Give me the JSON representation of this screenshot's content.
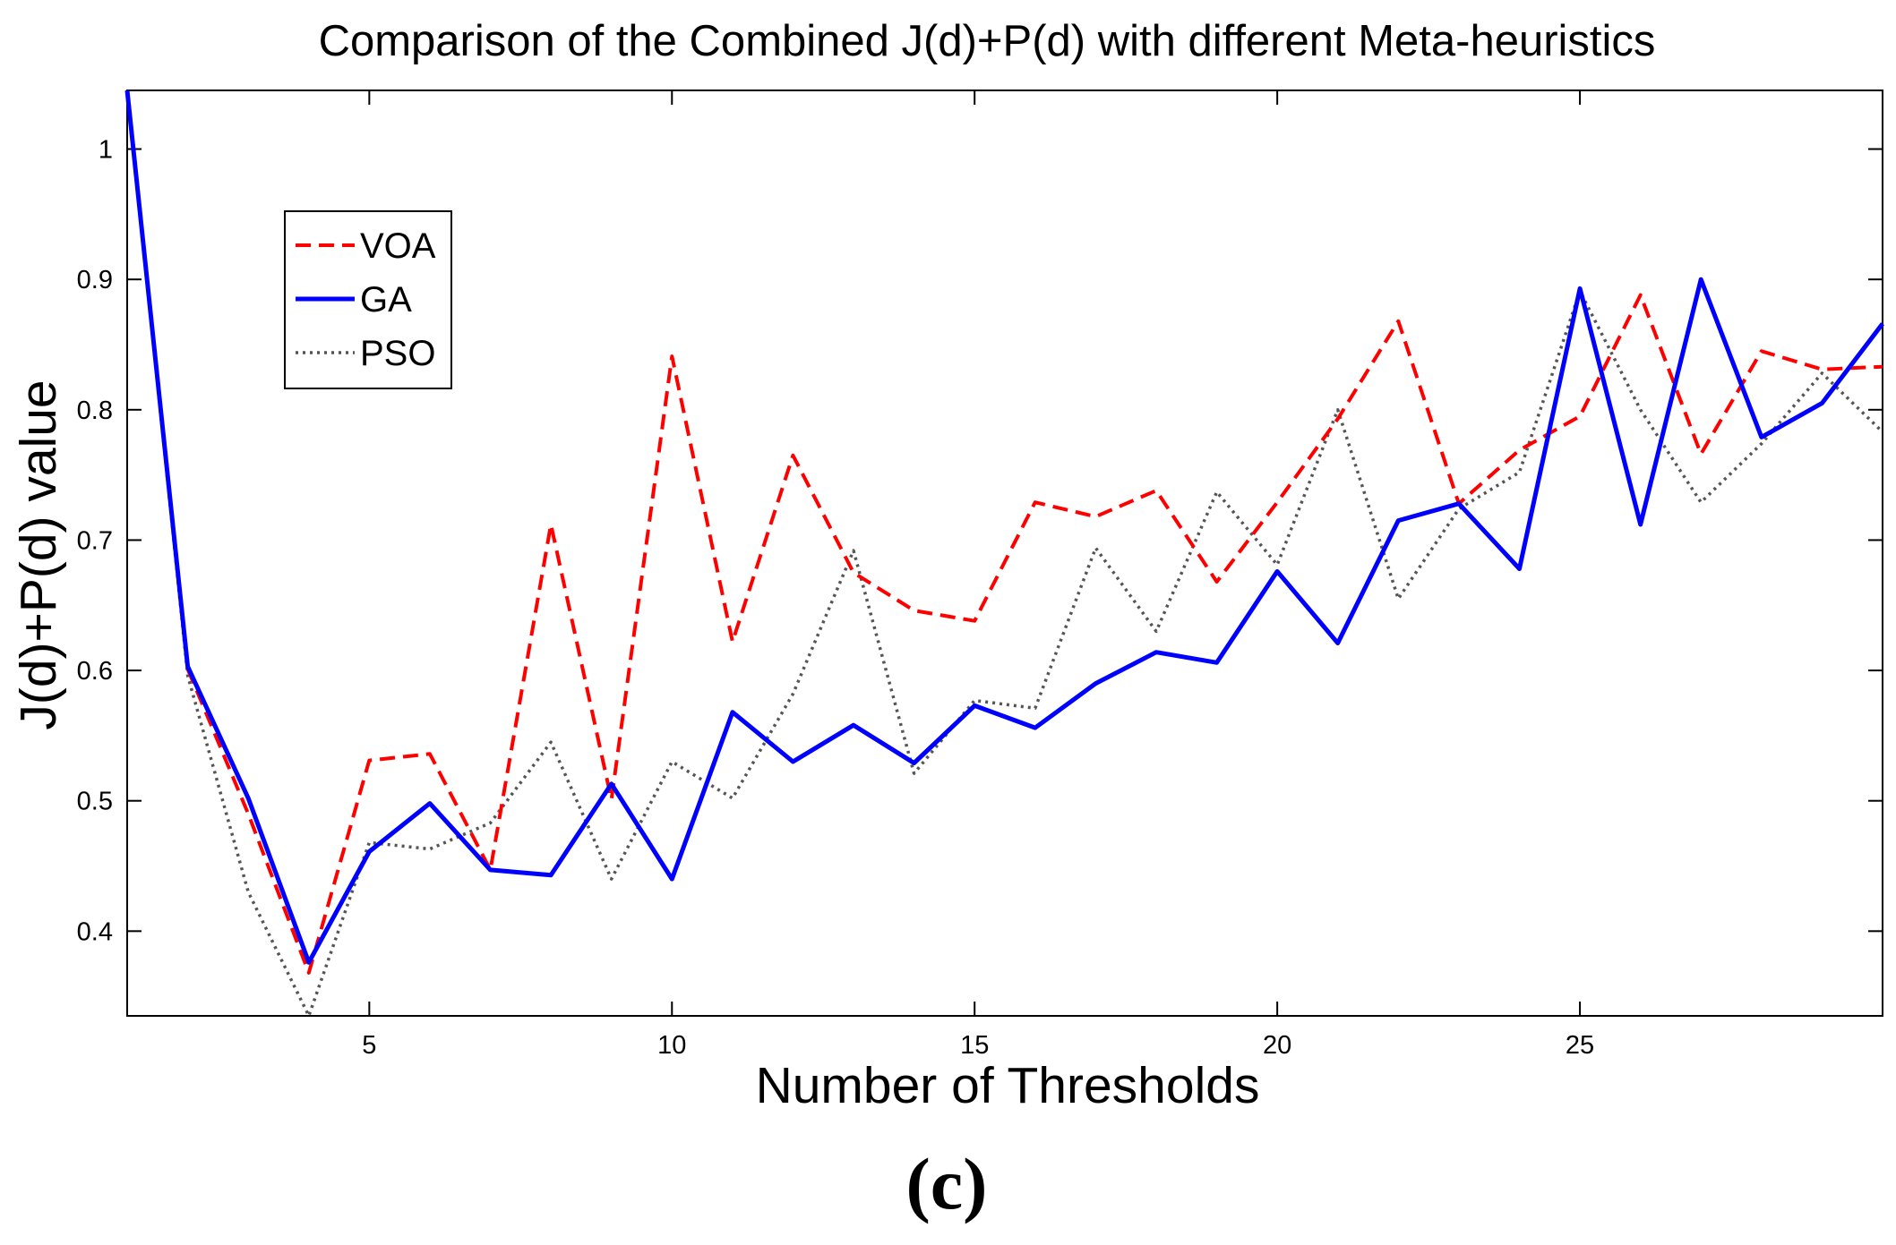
{
  "chart_data": {
    "type": "line",
    "title": "Comparison of the Combined J(d)+P(d) with different Meta-heuristics",
    "xlabel": "Number of Thresholds",
    "ylabel": "J(d)+P(d) value",
    "xlim": [
      1,
      30
    ],
    "ylim": [
      0.335,
      1.045
    ],
    "xticks": [
      5,
      10,
      15,
      20,
      25
    ],
    "xtick_labels": [
      "5",
      "10",
      "15",
      "20",
      "25"
    ],
    "yticks": [
      0.4,
      0.5,
      0.6,
      0.7,
      0.8,
      0.9,
      1
    ],
    "ytick_labels": [
      "0.4",
      "0.5",
      "0.6",
      "0.7",
      "0.8",
      "0.9",
      "1"
    ],
    "grid": false,
    "legend_position": "upper-left",
    "x": [
      1,
      2,
      3,
      4,
      5,
      6,
      7,
      8,
      9,
      10,
      11,
      12,
      13,
      14,
      15,
      16,
      17,
      18,
      19,
      20,
      21,
      22,
      23,
      24,
      25,
      26,
      27,
      28,
      29,
      30
    ],
    "series": [
      {
        "name": "VOA",
        "color": "#ff0000",
        "style": "dashed",
        "values": [
          1.045,
          0.601,
          0.49,
          0.368,
          0.531,
          0.536,
          0.447,
          0.712,
          0.501,
          0.841,
          0.622,
          0.765,
          0.675,
          0.646,
          0.638,
          0.729,
          0.718,
          0.738,
          0.668,
          0.729,
          0.793,
          0.868,
          0.728,
          0.769,
          0.795,
          0.888,
          0.766,
          0.845,
          0.831,
          0.833
        ]
      },
      {
        "name": "GA",
        "color": "#0000ff",
        "style": "solid",
        "values": [
          1.045,
          0.603,
          0.502,
          0.376,
          0.461,
          0.498,
          0.447,
          0.443,
          0.513,
          0.44,
          0.568,
          0.53,
          0.558,
          0.529,
          0.573,
          0.556,
          0.59,
          0.614,
          0.606,
          0.676,
          0.621,
          0.715,
          0.728,
          0.678,
          0.893,
          0.712,
          0.9,
          0.779,
          0.805,
          0.866
        ]
      },
      {
        "name": "PSO",
        "color": "#555555",
        "style": "dotted",
        "values": [
          1.045,
          0.596,
          0.43,
          0.335,
          0.468,
          0.463,
          0.483,
          0.545,
          0.44,
          0.53,
          0.502,
          0.582,
          0.692,
          0.521,
          0.577,
          0.571,
          0.694,
          0.63,
          0.737,
          0.681,
          0.8,
          0.655,
          0.724,
          0.752,
          0.891,
          0.8,
          0.729,
          0.774,
          0.828,
          0.783
        ]
      }
    ],
    "caption": "(c)"
  }
}
